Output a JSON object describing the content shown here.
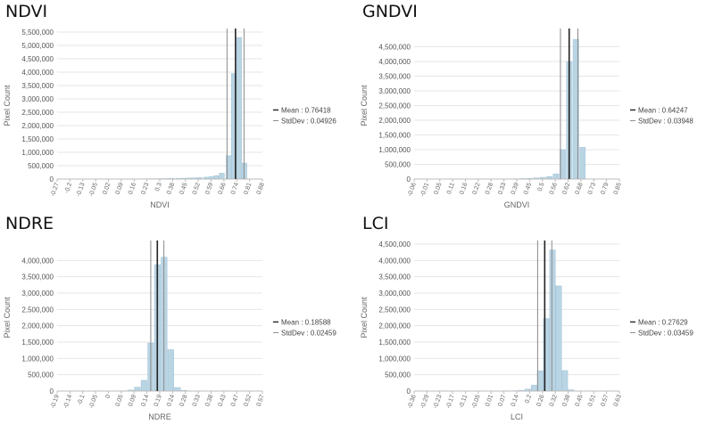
{
  "chart_data": [
    {
      "type": "bar",
      "title": "NDVI",
      "xlabel": "NDVI",
      "ylabel": "Pixel Count",
      "ylim": [
        0,
        5500000
      ],
      "yticks": [
        0,
        500000,
        1000000,
        1500000,
        2000000,
        2500000,
        3000000,
        3500000,
        4000000,
        4500000,
        5000000,
        5500000
      ],
      "ytick_labels": [
        "0",
        "500,000",
        "1,000,000",
        "1,500,000",
        "2,000,000",
        "2,500,000",
        "3,000,000",
        "3,500,000",
        "4,000,000",
        "4,500,000",
        "5,000,000",
        "5,500,000"
      ],
      "xlim": [
        -0.27,
        0.92
      ],
      "xtick_labels": [
        "-0.27",
        "-0.2",
        "-0.13",
        "-0.05",
        "0.02",
        "0.09",
        "0.16",
        "0.23",
        "0.3",
        "0.38",
        "0.45",
        "0.52",
        "0.59",
        "0.66",
        "0.74",
        "0.81",
        "0.88"
      ],
      "x": [
        0.0,
        0.03,
        0.06,
        0.09,
        0.12,
        0.16,
        0.19,
        0.22,
        0.25,
        0.29,
        0.32,
        0.35,
        0.38,
        0.42,
        0.45,
        0.48,
        0.51,
        0.54,
        0.58,
        0.61,
        0.64,
        0.67,
        0.71,
        0.74,
        0.77,
        0.8,
        0.83,
        0.87
      ],
      "values": [
        5000,
        5000,
        6000,
        7000,
        8000,
        9000,
        10000,
        12000,
        14000,
        16000,
        18000,
        20000,
        24000,
        28000,
        32000,
        38000,
        45000,
        55000,
        70000,
        90000,
        130000,
        220000,
        880000,
        3950000,
        5300000,
        600000,
        0,
        0
      ],
      "bin_width": 0.032,
      "mean": 0.76418,
      "stddev": 0.04926,
      "legend": [
        "Mean : 0.76418",
        "StdDev : 0.04926"
      ]
    },
    {
      "type": "bar",
      "title": "GNDVI",
      "xlabel": "GNDVI",
      "ylabel": "Pixel Count",
      "ylim": [
        0,
        5000000
      ],
      "yticks": [
        0,
        500000,
        1000000,
        1500000,
        2000000,
        2500000,
        3000000,
        3500000,
        4000000,
        4500000
      ],
      "ytick_labels": [
        "0",
        "500,000",
        "1,000,000",
        "1,500,000",
        "2,000,000",
        "2,500,000",
        "3,000,000",
        "3,500,000",
        "4,000,000",
        "4,500,000"
      ],
      "xlim": [
        -0.06,
        0.87
      ],
      "xtick_labels": [
        "-0.06",
        "-0.01",
        "0.05",
        "0.11",
        "0.16",
        "0.22",
        "0.28",
        "0.33",
        "0.39",
        "0.45",
        "0.5",
        "0.56",
        "0.62",
        "0.68",
        "0.73",
        "0.79",
        "0.85"
      ],
      "x": [
        0.33,
        0.36,
        0.39,
        0.42,
        0.45,
        0.48,
        0.51,
        0.54,
        0.57,
        0.6,
        0.63,
        0.66,
        0.69,
        0.72
      ],
      "values": [
        5000,
        8000,
        12000,
        18000,
        25000,
        40000,
        60000,
        90000,
        180000,
        1000000,
        4000000,
        4750000,
        1080000,
        0
      ],
      "bin_width": 0.0275,
      "mean": 0.64247,
      "stddev": 0.03948,
      "legend": [
        "Mean : 0.64247",
        "StdDev : 0.03948"
      ]
    },
    {
      "type": "bar",
      "title": "NDRE",
      "xlabel": "NDRE",
      "ylabel": "Pixel Count",
      "ylim": [
        0,
        4500000
      ],
      "yticks": [
        0,
        500000,
        1000000,
        1500000,
        2000000,
        2500000,
        3000000,
        3500000,
        4000000
      ],
      "ytick_labels": [
        "0",
        "500,000",
        "1,000,000",
        "1,500,000",
        "2,000,000",
        "2,500,000",
        "3,000,000",
        "3,500,000",
        "4,000,000"
      ],
      "xlim": [
        -0.19,
        0.58
      ],
      "xtick_labels": [
        "-0.19",
        "-0.14",
        "-0.1",
        "-0.05",
        "0",
        "0.05",
        "0.09",
        "0.14",
        "0.19",
        "0.24",
        "0.28",
        "0.33",
        "0.38",
        "0.43",
        "0.47",
        "0.52",
        "0.57"
      ],
      "x": [
        0.0,
        0.025,
        0.05,
        0.075,
        0.1,
        0.125,
        0.15,
        0.175,
        0.2,
        0.225,
        0.25,
        0.275,
        0.3
      ],
      "values": [
        3000,
        5000,
        10000,
        30000,
        120000,
        330000,
        1470000,
        3870000,
        4100000,
        1270000,
        110000,
        20000,
        5000
      ],
      "bin_width": 0.024,
      "mean": 0.18588,
      "stddev": 0.02459,
      "legend": [
        "Mean : 0.18588",
        "StdDev : 0.02459"
      ]
    },
    {
      "type": "bar",
      "title": "LCI",
      "xlabel": "LCI",
      "ylabel": "Pixel Count",
      "ylim": [
        0,
        4500000
      ],
      "yticks": [
        0,
        500000,
        1000000,
        1500000,
        2000000,
        2500000,
        3000000,
        3500000,
        4000000,
        4500000
      ],
      "ytick_labels": [
        "0",
        "500,000",
        "1,000,000",
        "1,500,000",
        "2,000,000",
        "2,500,000",
        "3,000,000",
        "3,500,000",
        "4,000,000",
        "4,500,000"
      ],
      "xlim": [
        -0.36,
        0.64
      ],
      "xtick_labels": [
        "-0.36",
        "-0.29",
        "-0.23",
        "-0.17",
        "-0.11",
        "-0.05",
        "0.01",
        "0.07",
        "0.14",
        "0.2",
        "0.26",
        "0.32",
        "0.38",
        "0.45",
        "0.51",
        "0.57",
        "0.63"
      ],
      "x": [
        0.06,
        0.09,
        0.12,
        0.15,
        0.18,
        0.21,
        0.24,
        0.27,
        0.3,
        0.33,
        0.36,
        0.39
      ],
      "values": [
        4000,
        8000,
        12000,
        25000,
        60000,
        180000,
        620000,
        2220000,
        4320000,
        3220000,
        630000,
        40000
      ],
      "bin_width": 0.03,
      "mean": 0.27629,
      "stddev": 0.03459,
      "legend": [
        "Mean : 0.27629",
        "StdDev : 0.03459"
      ]
    }
  ],
  "colors": {
    "bar": "#b9d4e3",
    "bar_stroke": "#9cc0d6",
    "mean": "#222222",
    "std": "#8a8a8a",
    "grid": "#e6e6e6",
    "axis": "#bbbbbb"
  }
}
